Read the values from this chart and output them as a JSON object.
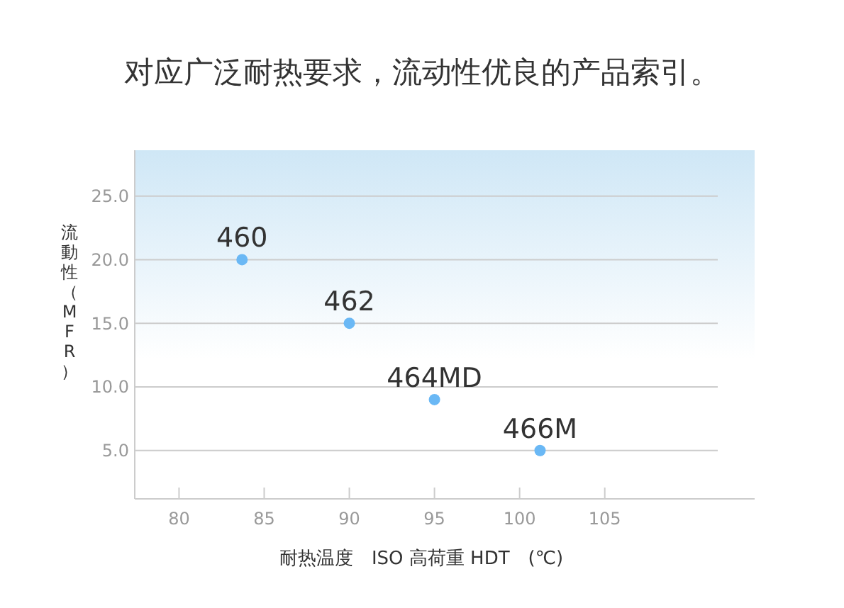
{
  "chart_data": {
    "type": "scatter",
    "title": "对应广泛耐热要求，流动性优良的产品索引。",
    "xlabel": "耐热温度　ISO 高荷重 HDT　(℃)",
    "ylabel": "流動性（MFR）",
    "series": [
      {
        "color": "#6ab8f5",
        "x": [
          83.7,
          90,
          95,
          101.2
        ],
        "values": [
          20,
          15,
          9,
          5
        ]
      }
    ],
    "xlim": [
      77.4,
      113.8
    ],
    "xticks": [
      80,
      85,
      90,
      95,
      100,
      105
    ],
    "ylim": [
      1.2,
      28.6
    ],
    "yticks": [
      {
        "value": 5,
        "label": "5.0"
      },
      {
        "value": 10,
        "label": "10.0"
      },
      {
        "value": 15,
        "label": "15.0"
      },
      {
        "value": 20,
        "label": "20.0"
      },
      {
        "value": 25,
        "label": "25.0"
      }
    ],
    "grid": "y",
    "marker": "circle",
    "annotations": [
      {
        "text": "460",
        "x": 83.7,
        "y": 20
      },
      {
        "text": "462",
        "x": 90,
        "y": 15
      },
      {
        "text": "464MD",
        "x": 95,
        "y": 9
      },
      {
        "text": "466M",
        "x": 101.2,
        "y": 5
      }
    ]
  }
}
